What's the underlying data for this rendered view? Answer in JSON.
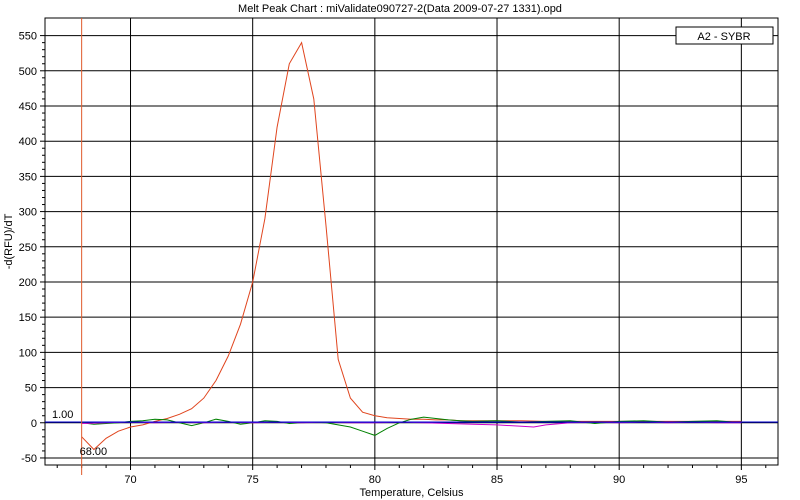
{
  "chart_data": {
    "type": "line",
    "title": "Melt Peak Chart : miValidate090727-2(Data 2009-07-27 1331).opd",
    "xlabel": "Temperature, Celsius",
    "ylabel": "-d(RFU)/dT",
    "xlim": [
      66.5,
      96.5
    ],
    "ylim": [
      -60,
      575
    ],
    "xticks": [
      70,
      75,
      80,
      85,
      90,
      95
    ],
    "yticks": [
      -50,
      0,
      50,
      100,
      150,
      200,
      250,
      300,
      350,
      400,
      450,
      500,
      550
    ],
    "grid": true,
    "legend": {
      "position": "top-right",
      "entries": [
        "A2 - SYBR"
      ]
    },
    "threshold": {
      "value": 1.0,
      "label": "1.00",
      "color": "#0000cc"
    },
    "marker": {
      "x": 68.0,
      "label": "68.00",
      "color": "#e05a2b"
    },
    "colors": {
      "background": "#ffffff",
      "grid": "#000000"
    },
    "series": [
      {
        "name": "A2 - SYBR",
        "color": "#e0451e",
        "x": [
          68.0,
          68.5,
          69.0,
          69.5,
          70.0,
          70.5,
          71.0,
          71.5,
          72.0,
          72.5,
          73.0,
          73.5,
          74.0,
          74.5,
          75.0,
          75.5,
          76.0,
          76.5,
          77.0,
          77.5,
          78.0,
          78.5,
          79.0,
          79.5,
          80.0,
          80.5,
          81.0,
          81.5,
          82.0,
          82.5,
          83.0,
          83.5,
          84.0,
          84.5,
          85.0,
          86.0,
          87.0,
          88.0,
          89.0,
          90.0,
          91.0,
          92.0,
          93.0,
          94.0,
          95.0
        ],
        "values": [
          -20,
          -38,
          -22,
          -12,
          -6,
          -3,
          2,
          6,
          12,
          20,
          35,
          60,
          95,
          140,
          200,
          290,
          420,
          510,
          540,
          460,
          280,
          90,
          35,
          15,
          10,
          7,
          6,
          5,
          5,
          4,
          4,
          3,
          3,
          3,
          3,
          3,
          2,
          2,
          2,
          2,
          2,
          2,
          2,
          2,
          2
        ]
      },
      {
        "color": "#008000",
        "x": [
          68.0,
          68.5,
          69.0,
          69.5,
          70.0,
          70.5,
          71.0,
          71.5,
          72.0,
          72.5,
          73.0,
          73.5,
          74.0,
          74.5,
          75.0,
          75.5,
          76.0,
          76.5,
          77.0,
          77.5,
          78.0,
          78.5,
          79.0,
          79.5,
          80.0,
          80.5,
          81.0,
          81.5,
          82.0,
          82.5,
          83.0,
          83.5,
          84.0,
          85.0,
          86.0,
          87.0,
          88.0,
          89.0,
          90.0,
          91.0,
          92.0,
          93.0,
          94.0,
          95.0
        ],
        "values": [
          0,
          -2,
          -1,
          0,
          2,
          3,
          5,
          4,
          0,
          -4,
          0,
          5,
          2,
          -2,
          0,
          3,
          2,
          -1,
          0,
          1,
          0,
          -3,
          -6,
          -12,
          -18,
          -8,
          0,
          5,
          8,
          6,
          4,
          3,
          2,
          3,
          1,
          2,
          3,
          -1,
          2,
          3,
          1,
          2,
          3,
          0
        ]
      },
      {
        "color": "#cc00cc",
        "x": [
          68.0,
          69.0,
          70.0,
          71.0,
          72.0,
          73.0,
          74.0,
          75.0,
          76.0,
          77.0,
          78.0,
          79.0,
          80.0,
          81.0,
          82.0,
          83.0,
          84.0,
          85.0,
          86.0,
          86.5,
          87.0,
          88.0,
          89.0,
          90.0,
          91.0,
          92.0,
          93.0,
          94.0,
          95.0
        ],
        "values": [
          -1,
          0,
          1,
          0,
          1,
          0,
          1,
          0,
          1,
          0,
          1,
          0,
          0,
          1,
          0,
          -1,
          -2,
          -3,
          -5,
          -6,
          -3,
          0,
          1,
          0,
          1,
          0,
          1,
          0,
          0
        ]
      },
      {
        "color": "#2020ff",
        "x": [
          68.0,
          70.0,
          72.0,
          74.0,
          76.0,
          78.0,
          80.0,
          82.0,
          84.0,
          86.0,
          88.0,
          90.0,
          92.0,
          94.0,
          95.0
        ],
        "values": [
          1,
          1,
          1,
          1,
          1,
          1,
          1,
          1,
          1,
          1,
          1,
          1,
          1,
          1,
          1
        ]
      }
    ]
  }
}
